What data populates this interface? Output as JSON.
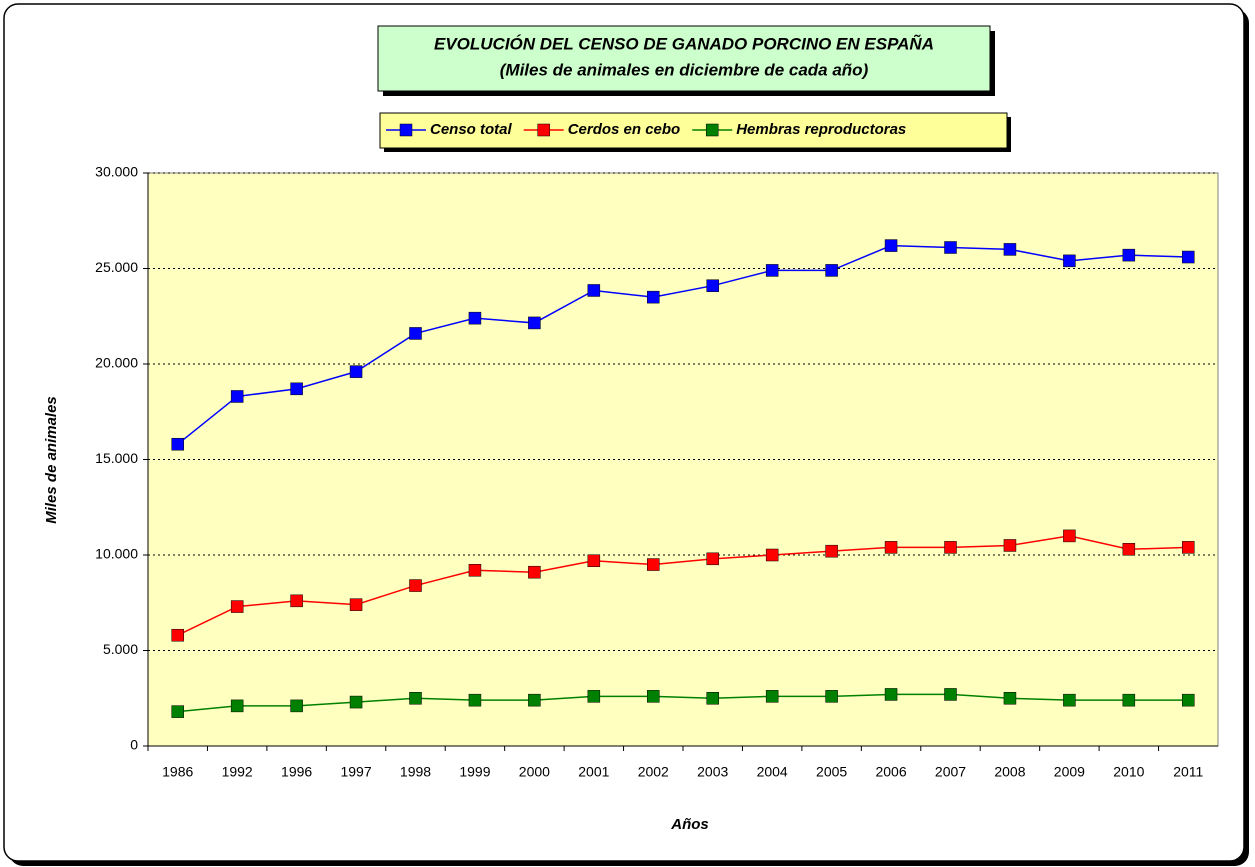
{
  "chart_data": {
    "type": "line",
    "title": "EVOLUCIÓN DEL CENSO DE GANADO PORCINO EN ESPAÑA",
    "subtitle": "(Miles de animales en diciembre de cada año)",
    "x_label": "Años",
    "y_label": "Miles de animales",
    "categories": [
      "1986",
      "1992",
      "1996",
      "1997",
      "1998",
      "1999",
      "2000",
      "2001",
      "2002",
      "2003",
      "2004",
      "2005",
      "2006",
      "2007",
      "2008",
      "2009",
      "2010",
      "2011"
    ],
    "series": [
      {
        "name": "Censo total",
        "color": "#0000ff",
        "values": [
          15800,
          18300,
          18700,
          19600,
          21600,
          22400,
          22150,
          23850,
          23500,
          24100,
          24900,
          24900,
          26200,
          26100,
          26000,
          25400,
          25700,
          25600
        ]
      },
      {
        "name": "Cerdos en cebo",
        "color": "#ff0000",
        "values": [
          5800,
          7300,
          7600,
          7400,
          8400,
          9200,
          9100,
          9700,
          9500,
          9800,
          10000,
          10200,
          10400,
          10400,
          10500,
          11000,
          10300,
          10400
        ]
      },
      {
        "name": "Hembras reproductoras",
        "color": "#008000",
        "values": [
          1800,
          2100,
          2100,
          2300,
          2500,
          2400,
          2400,
          2600,
          2600,
          2500,
          2600,
          2600,
          2700,
          2700,
          2500,
          2400,
          2400,
          2400
        ]
      }
    ],
    "ylim": [
      0,
      30000
    ],
    "yticks": [
      0,
      {
        "value": 5000,
        "label": "5.000"
      },
      {
        "value": 10000,
        "label": "10.000"
      },
      {
        "value": 15000,
        "label": "15.000"
      },
      {
        "value": 20000,
        "label": "20.000"
      },
      {
        "value": 25000,
        "label": "25.000"
      },
      {
        "value": 30000,
        "label": "30.000"
      }
    ],
    "grid": true
  }
}
